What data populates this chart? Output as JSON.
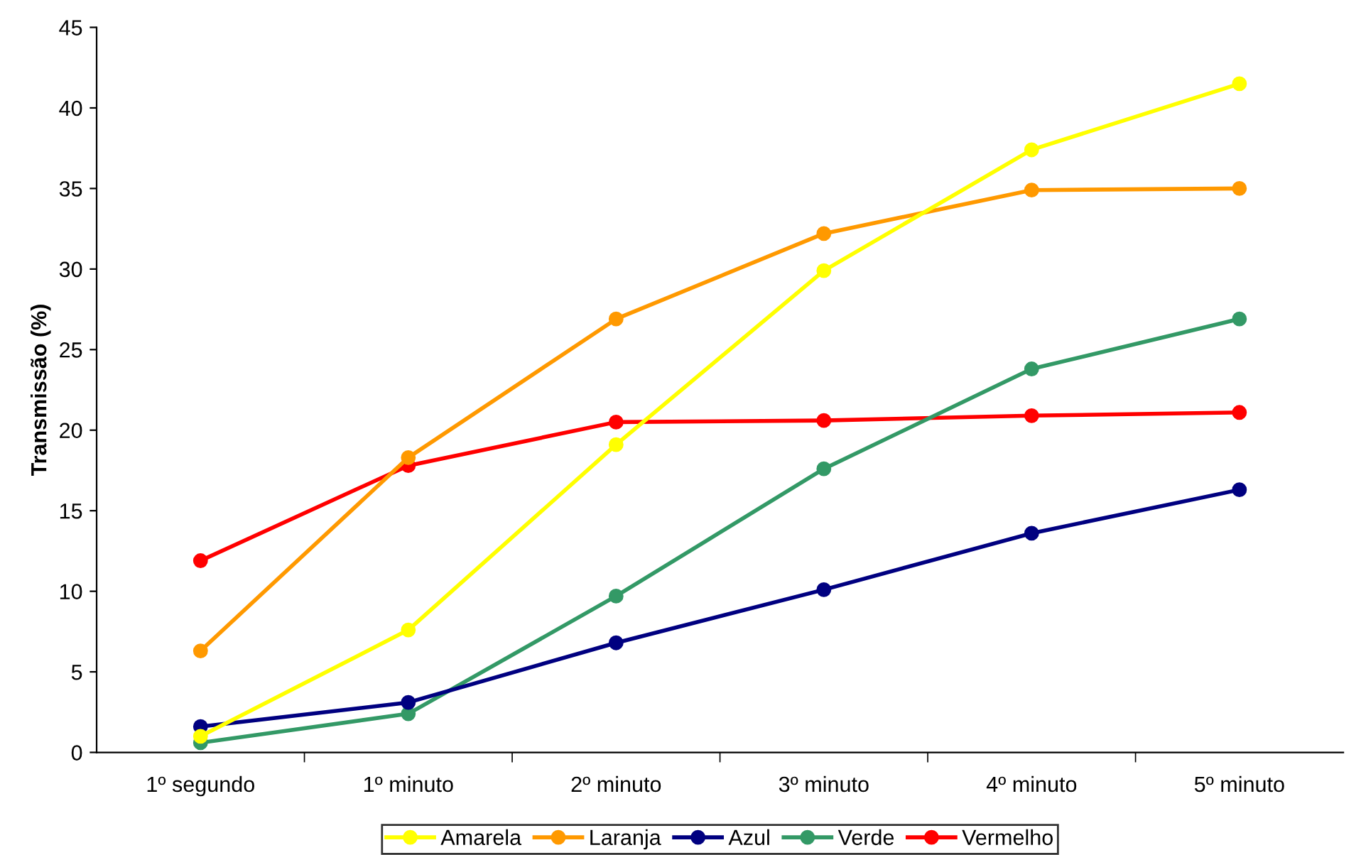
{
  "chart_data": {
    "type": "line",
    "ylabel": "Transmissão (%)",
    "categories": [
      "1º segundo",
      "1º minuto",
      "2º minuto",
      "3º minuto",
      "4º minuto",
      "5º minuto"
    ],
    "series": [
      {
        "name": "Amarela",
        "color": "#ffff00",
        "values": [
          1.0,
          7.6,
          19.1,
          29.9,
          37.4,
          41.5
        ]
      },
      {
        "name": "Laranja",
        "color": "#ff9900",
        "values": [
          6.3,
          18.3,
          26.9,
          32.2,
          34.9,
          35.0
        ]
      },
      {
        "name": "Azul",
        "color": "#000080",
        "values": [
          1.6,
          3.1,
          6.8,
          10.1,
          13.6,
          16.3
        ]
      },
      {
        "name": "Verde",
        "color": "#339966",
        "values": [
          0.6,
          2.4,
          9.7,
          17.6,
          23.8,
          26.9
        ]
      },
      {
        "name": "Vermelho",
        "color": "#ff0000",
        "values": [
          11.9,
          17.8,
          20.5,
          20.6,
          20.9,
          21.1
        ]
      }
    ],
    "ylim": [
      0,
      45
    ],
    "yticks": [
      0,
      5,
      10,
      15,
      20,
      25,
      30,
      35,
      40,
      45
    ],
    "grid": false,
    "legend": "bottom",
    "marker": "circle",
    "line_style": "solid"
  }
}
